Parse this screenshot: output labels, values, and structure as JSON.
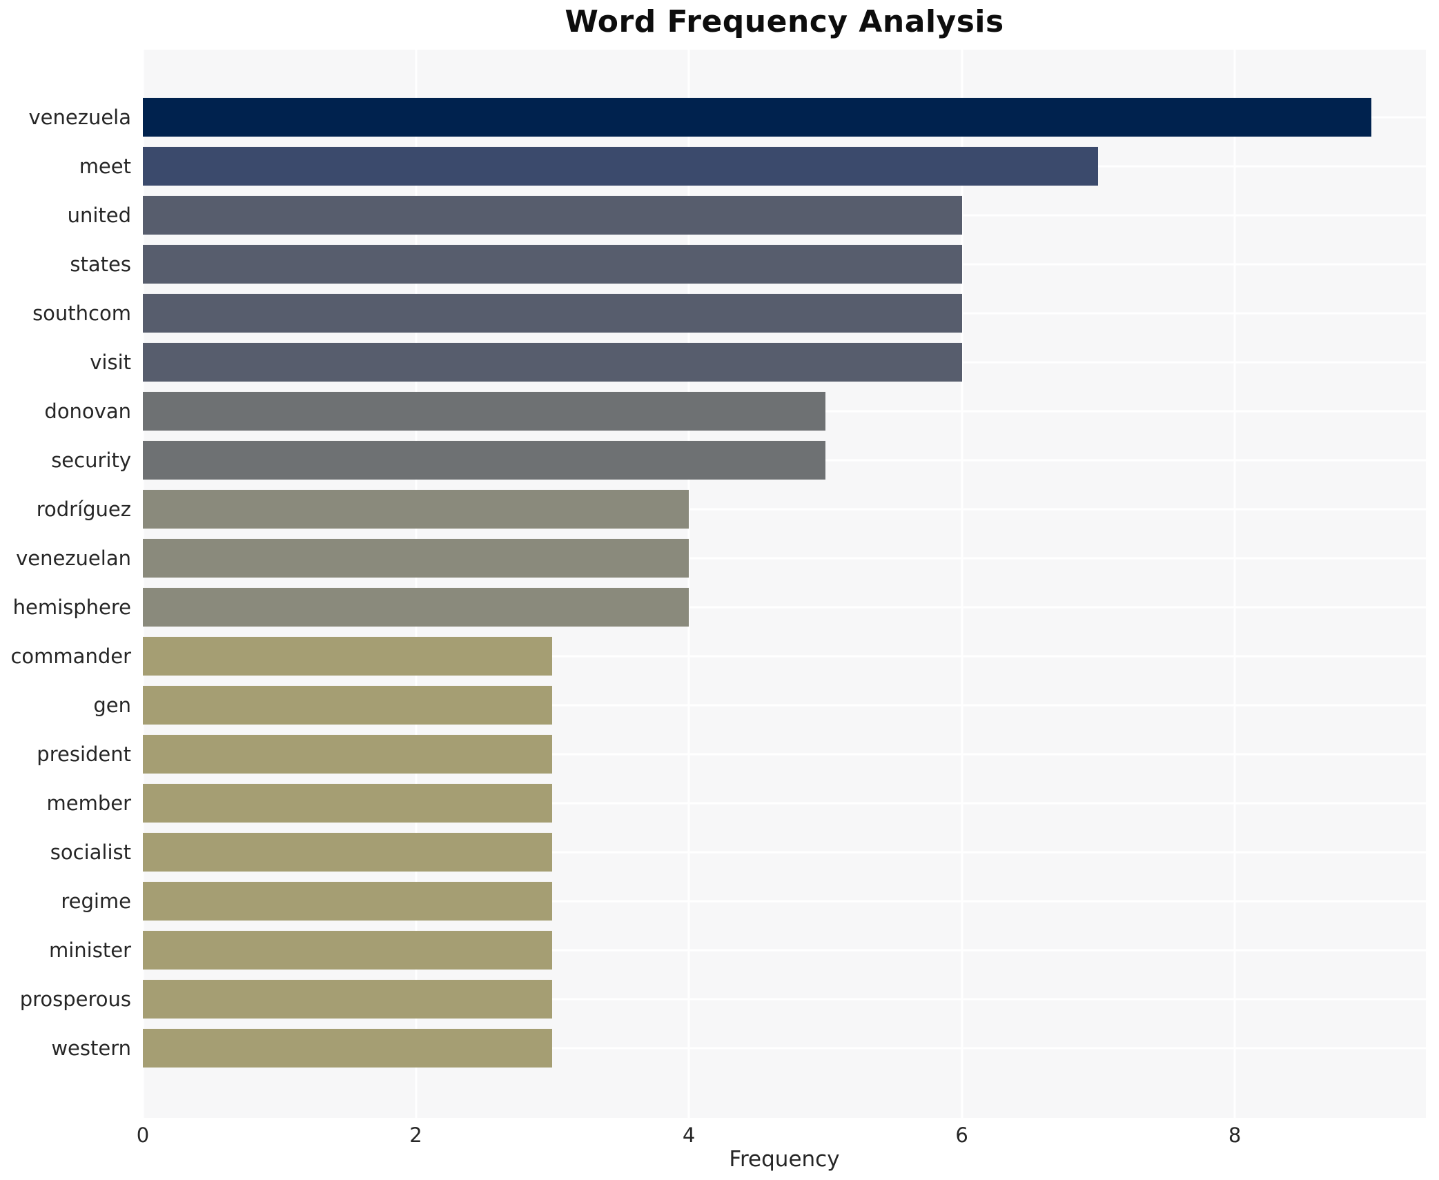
{
  "chart_data": {
    "type": "bar",
    "orientation": "horizontal",
    "title": "Word Frequency Analysis",
    "xlabel": "Frequency",
    "ylabel": "",
    "categories": [
      "venezuela",
      "meet",
      "united",
      "states",
      "southcom",
      "visit",
      "donovan",
      "security",
      "rodríguez",
      "venezuelan",
      "hemisphere",
      "commander",
      "gen",
      "president",
      "member",
      "socialist",
      "regime",
      "minister",
      "prosperous",
      "western"
    ],
    "values": [
      9,
      7,
      6,
      6,
      6,
      6,
      5,
      5,
      4,
      4,
      4,
      3,
      3,
      3,
      3,
      3,
      3,
      3,
      3,
      3
    ],
    "bar_colors": [
      "#00224e",
      "#3b4a6c",
      "#575d6d",
      "#575d6d",
      "#575d6d",
      "#575d6d",
      "#6e7173",
      "#6e7173",
      "#8a8a7c",
      "#8a8a7c",
      "#8a8a7c",
      "#a59e73",
      "#a59e73",
      "#a59e73",
      "#a59e73",
      "#a59e73",
      "#a59e73",
      "#a59e73",
      "#a59e73",
      "#a59e73"
    ],
    "value_color_map": {
      "9": "#00224e",
      "7": "#3b4a6c",
      "6": "#575d6d",
      "5": "#6e7173",
      "4": "#8a8a7c",
      "3": "#a59e73"
    },
    "x_ticks": [
      "0",
      "2",
      "4",
      "6",
      "8"
    ],
    "x_tick_values": [
      0,
      2,
      4,
      6,
      8
    ],
    "xlim": [
      0,
      9.4
    ],
    "grid": true,
    "gridline_color": "#ffffff",
    "legend_position": "none",
    "plot_background": "#f7f7f8",
    "figure_background": "#ffffff",
    "text_color": "#262626"
  }
}
